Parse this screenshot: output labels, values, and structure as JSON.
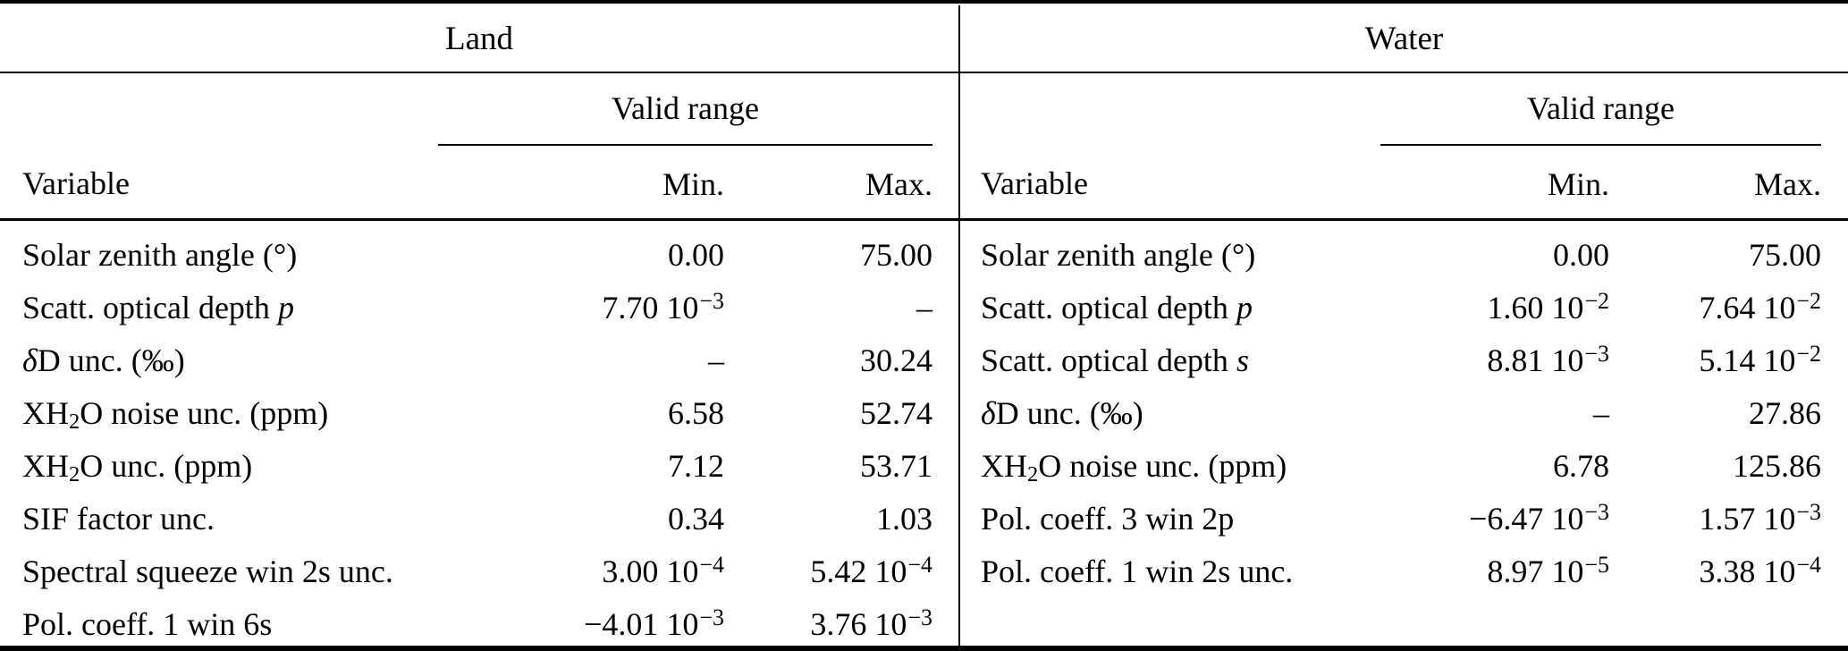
{
  "table": {
    "sections": [
      {
        "title": "Land",
        "valid_range_label": "Valid range",
        "columns": {
          "variable": "Variable",
          "min": "Min.",
          "max": "Max."
        },
        "rows": [
          {
            "variable": [
              [
                "Solar zenith angle (°)",
                ""
              ]
            ],
            "min": {
              "b": "0.00"
            },
            "max": {
              "b": "75.00"
            }
          },
          {
            "variable": [
              [
                "Scatt. optical depth ",
                ""
              ],
              [
                "p",
                "i"
              ]
            ],
            "min": {
              "b": "7.70 10",
              "s": "−3"
            },
            "max": {
              "b": "–"
            }
          },
          {
            "variable": [
              [
                "δ",
                "i"
              ],
              [
                "D unc. (‰)",
                ""
              ]
            ],
            "min": {
              "b": "–"
            },
            "max": {
              "b": "30.24"
            }
          },
          {
            "variable": [
              [
                "XH",
                ""
              ],
              [
                "2",
                "sub"
              ],
              [
                "O noise unc. (ppm)",
                ""
              ]
            ],
            "min": {
              "b": "6.58"
            },
            "max": {
              "b": "52.74"
            }
          },
          {
            "variable": [
              [
                "XH",
                ""
              ],
              [
                "2",
                "sub"
              ],
              [
                "O unc. (ppm)",
                ""
              ]
            ],
            "min": {
              "b": "7.12"
            },
            "max": {
              "b": "53.71"
            }
          },
          {
            "variable": [
              [
                "SIF factor unc.",
                ""
              ]
            ],
            "min": {
              "b": "0.34"
            },
            "max": {
              "b": "1.03"
            }
          },
          {
            "variable": [
              [
                "Spectral squeeze win 2s unc.",
                ""
              ]
            ],
            "min": {
              "b": "3.00 10",
              "s": "−4"
            },
            "max": {
              "b": "5.42 10",
              "s": "−4"
            }
          },
          {
            "variable": [
              [
                "Pol. coeff. 1 win 6s",
                ""
              ]
            ],
            "min": {
              "b": "−4.01 10",
              "s": "−3"
            },
            "max": {
              "b": "3.76 10",
              "s": "−3"
            }
          }
        ]
      },
      {
        "title": "Water",
        "valid_range_label": "Valid range",
        "columns": {
          "variable": "Variable",
          "min": "Min.",
          "max": "Max."
        },
        "rows": [
          {
            "variable": [
              [
                "Solar zenith angle (°)",
                ""
              ]
            ],
            "min": {
              "b": "0.00"
            },
            "max": {
              "b": "75.00"
            }
          },
          {
            "variable": [
              [
                "Scatt. optical depth ",
                ""
              ],
              [
                "p",
                "i"
              ]
            ],
            "min": {
              "b": "1.60 10",
              "s": "−2"
            },
            "max": {
              "b": "7.64 10",
              "s": "−2"
            }
          },
          {
            "variable": [
              [
                "Scatt. optical depth ",
                ""
              ],
              [
                "s",
                "i"
              ]
            ],
            "min": {
              "b": "8.81 10",
              "s": "−3"
            },
            "max": {
              "b": "5.14 10",
              "s": "−2"
            }
          },
          {
            "variable": [
              [
                "δ",
                "i"
              ],
              [
                "D unc. (‰)",
                ""
              ]
            ],
            "min": {
              "b": "–"
            },
            "max": {
              "b": "27.86"
            }
          },
          {
            "variable": [
              [
                "XH",
                ""
              ],
              [
                "2",
                "sub"
              ],
              [
                "O noise unc. (ppm)",
                ""
              ]
            ],
            "min": {
              "b": "6.78"
            },
            "max": {
              "b": "125.86"
            }
          },
          {
            "variable": [
              [
                "Pol. coeff. 3 win 2p",
                ""
              ]
            ],
            "min": {
              "b": "−6.47 10",
              "s": "−3"
            },
            "max": {
              "b": "1.57 10",
              "s": "−3"
            }
          },
          {
            "variable": [
              [
                "Pol. coeff. 1 win 2s unc.",
                ""
              ]
            ],
            "min": {
              "b": "8.97 10",
              "s": "−5"
            },
            "max": {
              "b": "3.38 10",
              "s": "−4"
            }
          }
        ]
      }
    ]
  }
}
